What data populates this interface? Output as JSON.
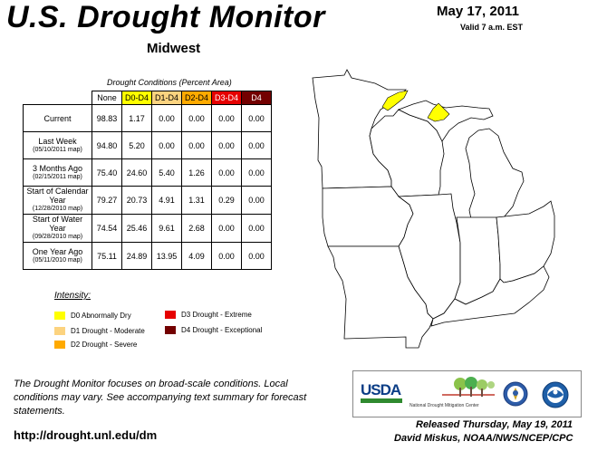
{
  "header": {
    "title": "U.S. Drought Monitor",
    "region": "Midwest",
    "date": "May 17, 2011",
    "valid": "Valid 7 a.m. EST"
  },
  "table": {
    "caption": "Drought Conditions (Percent Area)",
    "columns": [
      "None",
      "D0-D4",
      "D1-D4",
      "D2-D4",
      "D3-D4",
      "D4"
    ],
    "rows": [
      {
        "label": "Current",
        "sub": "",
        "values": [
          "98.83",
          "1.17",
          "0.00",
          "0.00",
          "0.00",
          "0.00"
        ]
      },
      {
        "label": "Last Week",
        "sub": "(05/10/2011 map)",
        "values": [
          "94.80",
          "5.20",
          "0.00",
          "0.00",
          "0.00",
          "0.00"
        ]
      },
      {
        "label": "3 Months Ago",
        "sub": "(02/15/2011 map)",
        "values": [
          "75.40",
          "24.60",
          "5.40",
          "1.26",
          "0.00",
          "0.00"
        ]
      },
      {
        "label": "Start of Calendar Year",
        "sub": "(12/28/2010 map)",
        "values": [
          "79.27",
          "20.73",
          "4.91",
          "1.31",
          "0.29",
          "0.00"
        ]
      },
      {
        "label": "Start of Water Year",
        "sub": "(09/28/2010 map)",
        "values": [
          "74.54",
          "25.46",
          "9.61",
          "2.68",
          "0.00",
          "0.00"
        ]
      },
      {
        "label": "One Year Ago",
        "sub": "(05/11/2010 map)",
        "values": [
          "75.11",
          "24.89",
          "13.95",
          "4.09",
          "0.00",
          "0.00"
        ]
      }
    ]
  },
  "legend": {
    "title": "Intensity:",
    "items": [
      {
        "label": "D0 Abnormally Dry",
        "color": "#ffff00"
      },
      {
        "label": "D1 Drought - Moderate",
        "color": "#fcd37f"
      },
      {
        "label": "D2 Drought - Severe",
        "color": "#ffaa00"
      },
      {
        "label": "D3 Drought - Extreme",
        "color": "#e60000"
      },
      {
        "label": "D4 Drought - Exceptional",
        "color": "#730000"
      }
    ]
  },
  "footer": {
    "note": "The Drought Monitor focuses on broad-scale conditions. Local conditions may vary. See accompanying text summary for forecast statements.",
    "url": "http://drought.unl.edu/dm",
    "released": "Released Thursday, May 19, 2011",
    "author": "David Miskus, NOAA/NWS/NCEP/CPC"
  },
  "logos": {
    "usda": "USDA",
    "ndmc": "National Drought Mitigation Center"
  }
}
